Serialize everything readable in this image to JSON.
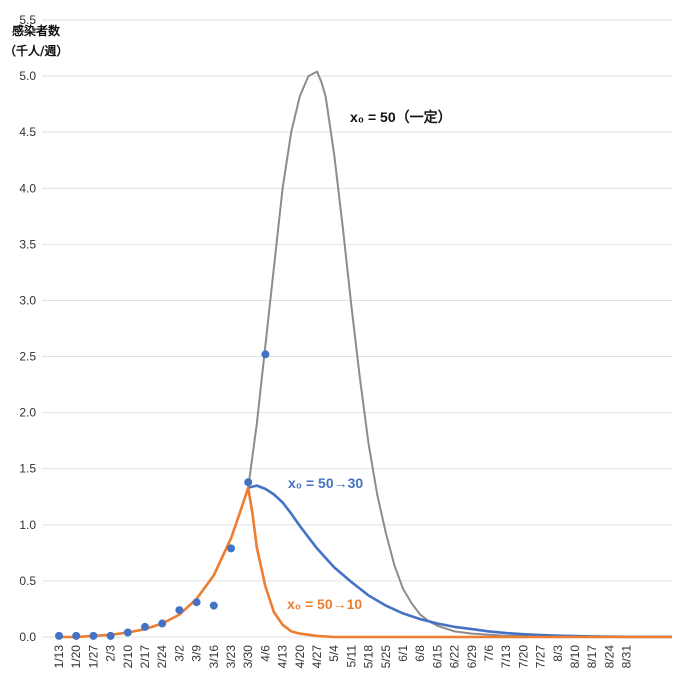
{
  "chart_data": {
    "type": "line",
    "ylabel_line1": "感染者数",
    "ylabel_line2": "（千人/週）",
    "ylim": [
      0,
      5.5
    ],
    "yticks": [
      "0.0",
      "0.5",
      "1.0",
      "1.5",
      "2.0",
      "2.5",
      "3.0",
      "3.5",
      "4.0",
      "4.5",
      "5.0",
      "5.5"
    ],
    "grid": true,
    "categories": [
      "1/13",
      "1/20",
      "1/27",
      "2/3",
      "2/10",
      "2/17",
      "2/24",
      "3/2",
      "3/9",
      "3/16",
      "3/23",
      "3/30",
      "4/6",
      "4/13",
      "4/20",
      "4/27",
      "5/4",
      "5/11",
      "5/18",
      "5/25",
      "6/1",
      "6/8",
      "6/15",
      "6/22",
      "6/29",
      "7/6",
      "7/13",
      "7/20",
      "7/27",
      "8/3",
      "8/10",
      "8/17",
      "8/24",
      "8/31"
    ],
    "observed": {
      "color": "#4472c4",
      "points": [
        {
          "x": "1/13",
          "y": 0.01
        },
        {
          "x": "1/20",
          "y": 0.01
        },
        {
          "x": "1/27",
          "y": 0.01
        },
        {
          "x": "2/3",
          "y": 0.01
        },
        {
          "x": "2/10",
          "y": 0.04
        },
        {
          "x": "2/17",
          "y": 0.09
        },
        {
          "x": "2/24",
          "y": 0.12
        },
        {
          "x": "3/2",
          "y": 0.24
        },
        {
          "x": "3/9",
          "y": 0.31
        },
        {
          "x": "3/16",
          "y": 0.28
        },
        {
          "x": "3/23",
          "y": 0.79
        },
        {
          "x": "3/30",
          "y": 1.38
        },
        {
          "x": "4/6",
          "y": 2.52
        }
      ]
    },
    "series": [
      {
        "color": "#8c8c8c",
        "x": [
          0,
          1,
          2,
          3,
          4,
          5,
          6,
          7,
          8,
          9,
          10,
          11,
          11.5,
          12,
          12.5,
          13,
          13.5,
          14,
          14.5,
          15,
          15.25,
          15.5,
          16,
          16.5,
          17,
          17.5,
          18,
          18.5,
          19,
          19.5,
          20,
          20.5,
          21,
          21.5,
          22,
          23,
          24,
          25,
          26,
          27,
          28,
          29,
          30,
          31,
          32,
          33
        ],
        "y": [
          0.0,
          0.0,
          0.01,
          0.02,
          0.04,
          0.07,
          0.12,
          0.2,
          0.34,
          0.55,
          0.88,
          1.33,
          1.9,
          2.6,
          3.3,
          4.0,
          4.5,
          4.82,
          5.0,
          5.04,
          4.95,
          4.82,
          4.3,
          3.65,
          2.95,
          2.3,
          1.72,
          1.27,
          0.93,
          0.64,
          0.43,
          0.3,
          0.2,
          0.14,
          0.1,
          0.05,
          0.03,
          0.02,
          0.01,
          0.01,
          0.0,
          0.0,
          0.0,
          0.0,
          0.0,
          0.0
        ]
      },
      {
        "color": "#4472c4",
        "x": [
          11,
          11.5,
          12,
          12.5,
          13,
          13.5,
          14,
          14.5,
          15,
          16,
          17,
          18,
          19,
          20,
          21,
          22,
          23,
          24,
          25,
          26,
          27,
          28,
          29,
          30,
          31,
          32,
          33
        ],
        "y": [
          1.33,
          1.35,
          1.32,
          1.27,
          1.2,
          1.1,
          0.99,
          0.89,
          0.79,
          0.62,
          0.49,
          0.37,
          0.28,
          0.21,
          0.16,
          0.12,
          0.09,
          0.07,
          0.05,
          0.035,
          0.025,
          0.018,
          0.012,
          0.008,
          0.005,
          0.003,
          0.002
        ]
      },
      {
        "color": "#ed7d31",
        "x": [
          0,
          1,
          2,
          3,
          4,
          5,
          6,
          7,
          8,
          9,
          10,
          10.5,
          11,
          11.25,
          11.5,
          12,
          12.5,
          13,
          13.5,
          14,
          15,
          16,
          17,
          18,
          19,
          20,
          21,
          22,
          23,
          24,
          25,
          26,
          27,
          28,
          29,
          30,
          31,
          32,
          33
        ],
        "y": [
          0.0,
          0.0,
          0.01,
          0.02,
          0.04,
          0.07,
          0.12,
          0.2,
          0.34,
          0.55,
          0.88,
          1.1,
          1.33,
          1.1,
          0.8,
          0.45,
          0.22,
          0.11,
          0.05,
          0.03,
          0.01,
          0.0,
          0.0,
          0.0,
          0.0,
          0.0,
          0.0,
          0.0,
          0.0,
          0.0,
          0.0,
          0.0,
          0.0,
          0.0,
          0.0,
          0.0,
          0.0,
          0.0,
          0.0
        ]
      }
    ],
    "annotations": [
      {
        "text": "x₀ = 50（一定）",
        "color": "#111111"
      },
      {
        "text": "x₀ = 50→30",
        "color": "#4472c4"
      },
      {
        "text": "x₀ = 50→10",
        "color": "#ed7d31"
      }
    ]
  }
}
